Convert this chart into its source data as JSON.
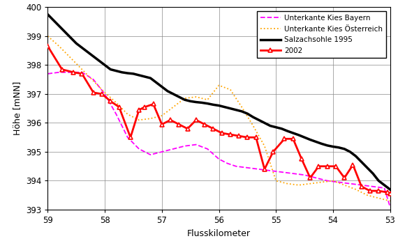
{
  "xlabel": "Flusskilometer",
  "ylabel": "Höhe [mNN]",
  "xlim": [
    53,
    59
  ],
  "ylim": [
    393,
    400
  ],
  "xticks": [
    59,
    58,
    57,
    56,
    55,
    54,
    53
  ],
  "yticks": [
    393,
    394,
    395,
    396,
    397,
    398,
    399,
    400
  ],
  "salzach1995_x": [
    59.0,
    58.9,
    58.8,
    58.7,
    58.6,
    58.5,
    58.4,
    58.3,
    58.2,
    58.1,
    58.0,
    57.9,
    57.8,
    57.7,
    57.6,
    57.5,
    57.4,
    57.3,
    57.2,
    57.1,
    57.0,
    56.9,
    56.8,
    56.7,
    56.6,
    56.5,
    56.4,
    56.3,
    56.2,
    56.1,
    56.0,
    55.9,
    55.8,
    55.7,
    55.6,
    55.5,
    55.4,
    55.3,
    55.2,
    55.1,
    55.0,
    54.9,
    54.8,
    54.7,
    54.6,
    54.5,
    54.4,
    54.3,
    54.2,
    54.1,
    54.0,
    53.9,
    53.8,
    53.7,
    53.6,
    53.5,
    53.4,
    53.3,
    53.2,
    53.1,
    53.0
  ],
  "salzach1995_y": [
    399.75,
    399.55,
    399.35,
    399.15,
    398.95,
    398.75,
    398.6,
    398.45,
    398.3,
    398.15,
    398.0,
    397.85,
    397.8,
    397.75,
    397.72,
    397.7,
    397.65,
    397.6,
    397.55,
    397.4,
    397.25,
    397.1,
    397.0,
    396.9,
    396.8,
    396.75,
    396.72,
    396.7,
    396.67,
    396.63,
    396.6,
    396.55,
    396.5,
    396.45,
    396.4,
    396.32,
    396.2,
    396.1,
    396.0,
    395.9,
    395.85,
    395.8,
    395.72,
    395.65,
    395.58,
    395.5,
    395.42,
    395.35,
    395.28,
    395.22,
    395.18,
    395.15,
    395.1,
    395.0,
    394.85,
    394.65,
    394.45,
    394.25,
    394.0,
    393.85,
    393.7
  ],
  "line2002_x": [
    59.0,
    58.75,
    58.55,
    58.4,
    58.2,
    58.05,
    57.9,
    57.75,
    57.55,
    57.4,
    57.3,
    57.15,
    57.0,
    56.85,
    56.7,
    56.55,
    56.4,
    56.25,
    56.1,
    55.95,
    55.8,
    55.65,
    55.5,
    55.35,
    55.2,
    55.05,
    54.85,
    54.7,
    54.55,
    54.4,
    54.25,
    54.1,
    53.95,
    53.8,
    53.65,
    53.5,
    53.35,
    53.2,
    53.05,
    53.0
  ],
  "line2002_y": [
    398.65,
    397.85,
    397.75,
    397.7,
    397.05,
    397.0,
    396.75,
    396.55,
    395.5,
    396.45,
    396.55,
    396.65,
    395.95,
    396.1,
    395.95,
    395.8,
    396.1,
    395.95,
    395.8,
    395.65,
    395.6,
    395.55,
    395.5,
    395.5,
    394.4,
    395.0,
    395.45,
    395.45,
    394.75,
    394.1,
    394.5,
    394.5,
    394.5,
    394.1,
    394.55,
    393.8,
    393.65,
    393.65,
    393.6,
    393.55
  ],
  "kies_bayern_x": [
    59.0,
    58.8,
    58.6,
    58.4,
    58.2,
    58.0,
    57.8,
    57.6,
    57.4,
    57.2,
    57.0,
    56.8,
    56.6,
    56.4,
    56.2,
    56.0,
    55.85,
    55.7,
    55.5,
    55.3,
    55.1,
    54.9,
    54.7,
    54.5,
    54.3,
    54.1,
    53.9,
    53.7,
    53.5,
    53.3,
    53.1,
    53.0
  ],
  "kies_bayern_y": [
    397.7,
    397.75,
    397.75,
    397.75,
    397.5,
    397.0,
    396.3,
    395.5,
    395.1,
    394.9,
    395.0,
    395.1,
    395.2,
    395.25,
    395.1,
    394.75,
    394.6,
    394.5,
    394.45,
    394.4,
    394.35,
    394.3,
    394.25,
    394.2,
    394.1,
    394.0,
    393.95,
    393.9,
    393.85,
    393.8,
    393.75,
    393.1
  ],
  "kies_oesterreich_x": [
    59.0,
    58.8,
    58.6,
    58.4,
    58.2,
    58.0,
    57.8,
    57.6,
    57.4,
    57.2,
    57.0,
    56.8,
    56.6,
    56.4,
    56.2,
    56.0,
    55.8,
    55.6,
    55.4,
    55.2,
    55.0,
    54.8,
    54.6,
    54.4,
    54.2,
    54.0,
    53.8,
    53.6,
    53.4,
    53.2,
    53.0
  ],
  "kies_oesterreich_y": [
    399.0,
    398.65,
    398.25,
    397.85,
    397.45,
    397.05,
    396.7,
    396.3,
    396.1,
    396.15,
    396.25,
    396.55,
    396.85,
    396.9,
    396.8,
    397.3,
    397.15,
    396.55,
    395.9,
    395.2,
    394.0,
    393.9,
    393.85,
    393.9,
    393.95,
    394.0,
    393.85,
    393.7,
    393.5,
    393.4,
    393.3
  ],
  "legend_labels": [
    "Unterkante Kies Bayern",
    "Unterkante Kies Österreich",
    "Salzachsohle 1995",
    "2002"
  ],
  "color_salzach": "#000000",
  "color_2002": "#ff0000",
  "color_kies_bayern": "#ff00ff",
  "color_kies_oesterreich": "#ffa500",
  "background_color": "#ffffff",
  "figure_width": 5.7,
  "figure_height": 3.46,
  "dpi": 100
}
